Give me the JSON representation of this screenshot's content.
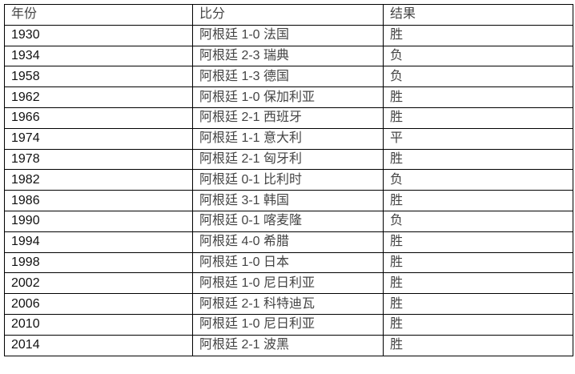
{
  "table": {
    "headers": [
      "年份",
      "比分",
      "结果"
    ],
    "rows": [
      [
        "1930",
        "阿根廷 1-0 法国",
        "胜"
      ],
      [
        "1934",
        "阿根廷 2-3 瑞典",
        "负"
      ],
      [
        "1958",
        "阿根廷 1-3 德国",
        "负"
      ],
      [
        "1962",
        "阿根廷 1-0 保加利亚",
        "胜"
      ],
      [
        "1966",
        "阿根廷 2-1 西班牙",
        "胜"
      ],
      [
        "1974",
        "阿根廷 1-1 意大利",
        "平"
      ],
      [
        "1978",
        "阿根廷 2-1 匈牙利",
        "胜"
      ],
      [
        "1982",
        "阿根廷 0-1 比利时",
        "负"
      ],
      [
        "1986",
        "阿根廷 3-1 韩国",
        "胜"
      ],
      [
        "1990",
        "阿根廷 0-1 喀麦隆",
        "负"
      ],
      [
        "1994",
        "阿根廷 4-0 希腊",
        "胜"
      ],
      [
        "1998",
        "阿根廷 1-0 日本",
        "胜"
      ],
      [
        "2002",
        "阿根廷 1-0 尼日利亚",
        "胜"
      ],
      [
        "2006",
        "阿根廷 2-1 科特迪瓦",
        "胜"
      ],
      [
        "2010",
        "阿根廷 1-0 尼日利亚",
        "胜"
      ],
      [
        "2014",
        "阿根廷 2-1 波黑",
        "胜"
      ]
    ]
  }
}
